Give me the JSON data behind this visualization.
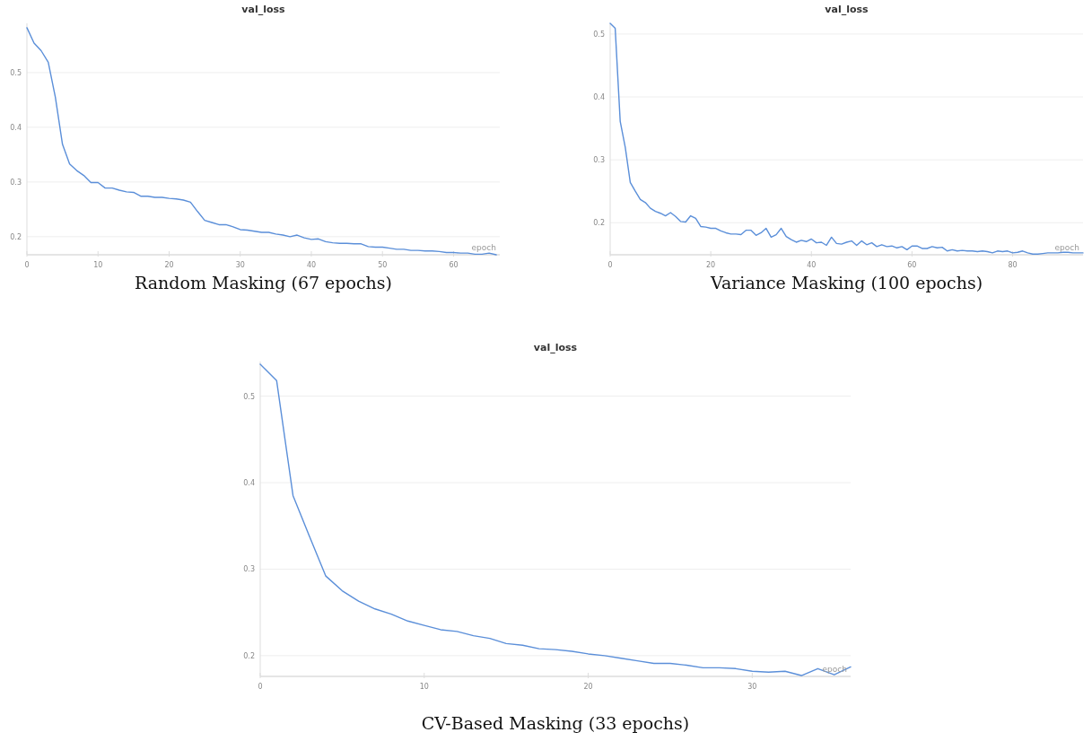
{
  "chart_data": [
    {
      "type": "line",
      "title": "val_loss",
      "xlabel": "epoch",
      "annotations": [
        "Random Masking (67 epochs)"
      ],
      "color": "#5b8fd9",
      "grid": "y",
      "xlim": [
        0,
        66.5
      ],
      "ylim": [
        0.167,
        0.59
      ],
      "xticks": [
        0,
        10,
        20,
        30,
        40,
        50,
        60
      ],
      "yticks": [
        0.2,
        0.3,
        0.4,
        0.5
      ],
      "x": [
        0,
        1,
        2,
        3,
        4,
        5,
        6,
        7,
        8,
        9,
        10,
        11,
        12,
        13,
        14,
        15,
        16,
        17,
        18,
        19,
        20,
        21,
        22,
        23,
        24,
        25,
        26,
        27,
        28,
        29,
        30,
        31,
        32,
        33,
        34,
        35,
        36,
        37,
        38,
        39,
        40,
        41,
        42,
        43,
        44,
        45,
        46,
        47,
        48,
        49,
        50,
        51,
        52,
        53,
        54,
        55,
        56,
        57,
        58,
        59,
        60,
        61,
        62,
        63,
        64,
        65,
        66
      ],
      "values": [
        0.582,
        0.554,
        0.54,
        0.519,
        0.455,
        0.369,
        0.333,
        0.321,
        0.312,
        0.299,
        0.299,
        0.289,
        0.289,
        0.285,
        0.282,
        0.281,
        0.274,
        0.274,
        0.272,
        0.272,
        0.27,
        0.269,
        0.267,
        0.263,
        0.246,
        0.23,
        0.226,
        0.222,
        0.222,
        0.218,
        0.213,
        0.212,
        0.21,
        0.208,
        0.208,
        0.205,
        0.203,
        0.2,
        0.203,
        0.198,
        0.195,
        0.196,
        0.191,
        0.189,
        0.188,
        0.188,
        0.187,
        0.187,
        0.182,
        0.181,
        0.181,
        0.179,
        0.177,
        0.177,
        0.175,
        0.175,
        0.174,
        0.174,
        0.173,
        0.171,
        0.171,
        0.17,
        0.17,
        0.168,
        0.168,
        0.17,
        0.167
      ]
    },
    {
      "type": "line",
      "title": "val_loss",
      "xlabel": "epoch",
      "annotations": [
        "Variance Masking (100 epochs)"
      ],
      "color": "#5b8fd9",
      "grid": "y",
      "xlim": [
        0,
        94
      ],
      "ylim": [
        0.149,
        0.517
      ],
      "xticks": [
        0,
        20,
        40,
        60,
        80
      ],
      "yticks": [
        0.2,
        0.3,
        0.4,
        0.5
      ],
      "x": [
        0,
        1,
        2,
        3,
        4,
        5,
        6,
        7,
        8,
        9,
        10,
        11,
        12,
        13,
        14,
        15,
        16,
        17,
        18,
        19,
        20,
        21,
        22,
        23,
        24,
        25,
        26,
        27,
        28,
        29,
        30,
        31,
        32,
        33,
        34,
        35,
        36,
        37,
        38,
        39,
        40,
        41,
        42,
        43,
        44,
        45,
        46,
        47,
        48,
        49,
        50,
        51,
        52,
        53,
        54,
        55,
        56,
        57,
        58,
        59,
        60,
        61,
        62,
        63,
        64,
        65,
        66,
        67,
        68,
        69,
        70,
        71,
        72,
        73,
        74,
        75,
        76,
        77,
        78,
        79,
        80,
        81,
        82,
        83,
        84,
        85,
        86,
        87,
        88,
        89,
        90,
        91,
        92,
        93,
        94
      ],
      "values": [
        0.517,
        0.509,
        0.361,
        0.32,
        0.264,
        0.25,
        0.237,
        0.232,
        0.223,
        0.218,
        0.215,
        0.211,
        0.216,
        0.21,
        0.202,
        0.201,
        0.211,
        0.207,
        0.194,
        0.193,
        0.191,
        0.191,
        0.187,
        0.184,
        0.182,
        0.182,
        0.181,
        0.188,
        0.188,
        0.18,
        0.184,
        0.191,
        0.177,
        0.181,
        0.191,
        0.178,
        0.173,
        0.169,
        0.172,
        0.17,
        0.174,
        0.168,
        0.169,
        0.164,
        0.177,
        0.167,
        0.166,
        0.169,
        0.171,
        0.164,
        0.171,
        0.165,
        0.168,
        0.162,
        0.165,
        0.162,
        0.163,
        0.16,
        0.162,
        0.157,
        0.163,
        0.163,
        0.159,
        0.159,
        0.162,
        0.16,
        0.161,
        0.155,
        0.157,
        0.155,
        0.156,
        0.155,
        0.155,
        0.154,
        0.155,
        0.154,
        0.152,
        0.155,
        0.154,
        0.155,
        0.152,
        0.153,
        0.155,
        0.152,
        0.15,
        0.15,
        0.151,
        0.152,
        0.152,
        0.152,
        0.153,
        0.153,
        0.152,
        0.152,
        0.152
      ]
    },
    {
      "type": "line",
      "title": "val_loss",
      "xlabel": "epoch",
      "annotations": [
        "CV-Based Masking (33 epochs)"
      ],
      "color": "#5b8fd9",
      "grid": "y",
      "xlim": [
        0,
        36
      ],
      "ylim": [
        0.176,
        0.54
      ],
      "xticks": [
        0,
        10,
        20,
        30
      ],
      "yticks": [
        0.2,
        0.3,
        0.4,
        0.5
      ],
      "x": [
        0,
        1,
        2,
        3,
        4,
        5,
        6,
        7,
        8,
        9,
        10,
        11,
        12,
        13,
        14,
        15,
        16,
        17,
        18,
        19,
        20,
        21,
        22,
        23,
        24,
        25,
        26,
        27,
        28,
        29,
        30,
        31,
        32,
        33,
        34,
        35,
        36
      ],
      "values": [
        0.537,
        0.518,
        0.385,
        0.338,
        0.292,
        0.275,
        0.263,
        0.254,
        0.248,
        0.24,
        0.235,
        0.23,
        0.228,
        0.223,
        0.22,
        0.214,
        0.212,
        0.208,
        0.207,
        0.205,
        0.202,
        0.2,
        0.197,
        0.194,
        0.191,
        0.191,
        0.189,
        0.186,
        0.186,
        0.185,
        0.182,
        0.181,
        0.182,
        0.177,
        0.185,
        0.178,
        0.187
      ]
    }
  ]
}
